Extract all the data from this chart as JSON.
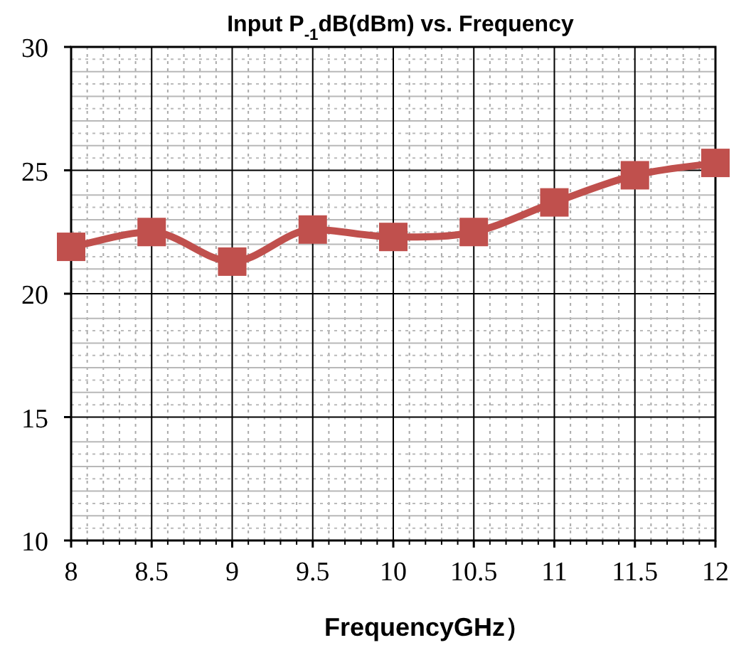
{
  "chart_data": {
    "type": "line",
    "title": "Input P$_{-1}$dB(dBm) vs. Frequency",
    "xlabel": "FrequencyGHz）",
    "x": [
      8,
      8.5,
      9,
      9.5,
      10,
      10.5,
      11,
      11.5,
      12
    ],
    "series": [
      {
        "color": "#c0504d",
        "values": [
          21.9,
          22.5,
          21.3,
          22.6,
          22.3,
          22.5,
          23.7,
          24.8,
          25.3
        ]
      }
    ],
    "xlim": [
      8,
      12
    ],
    "xticks": [
      8,
      8.5,
      9,
      9.5,
      10,
      10.5,
      11,
      11.5,
      12
    ],
    "ylim": [
      10,
      30
    ],
    "yticks": [
      10,
      15,
      20,
      25,
      30
    ],
    "grid": true,
    "marker": "square",
    "line_style": "solid"
  }
}
